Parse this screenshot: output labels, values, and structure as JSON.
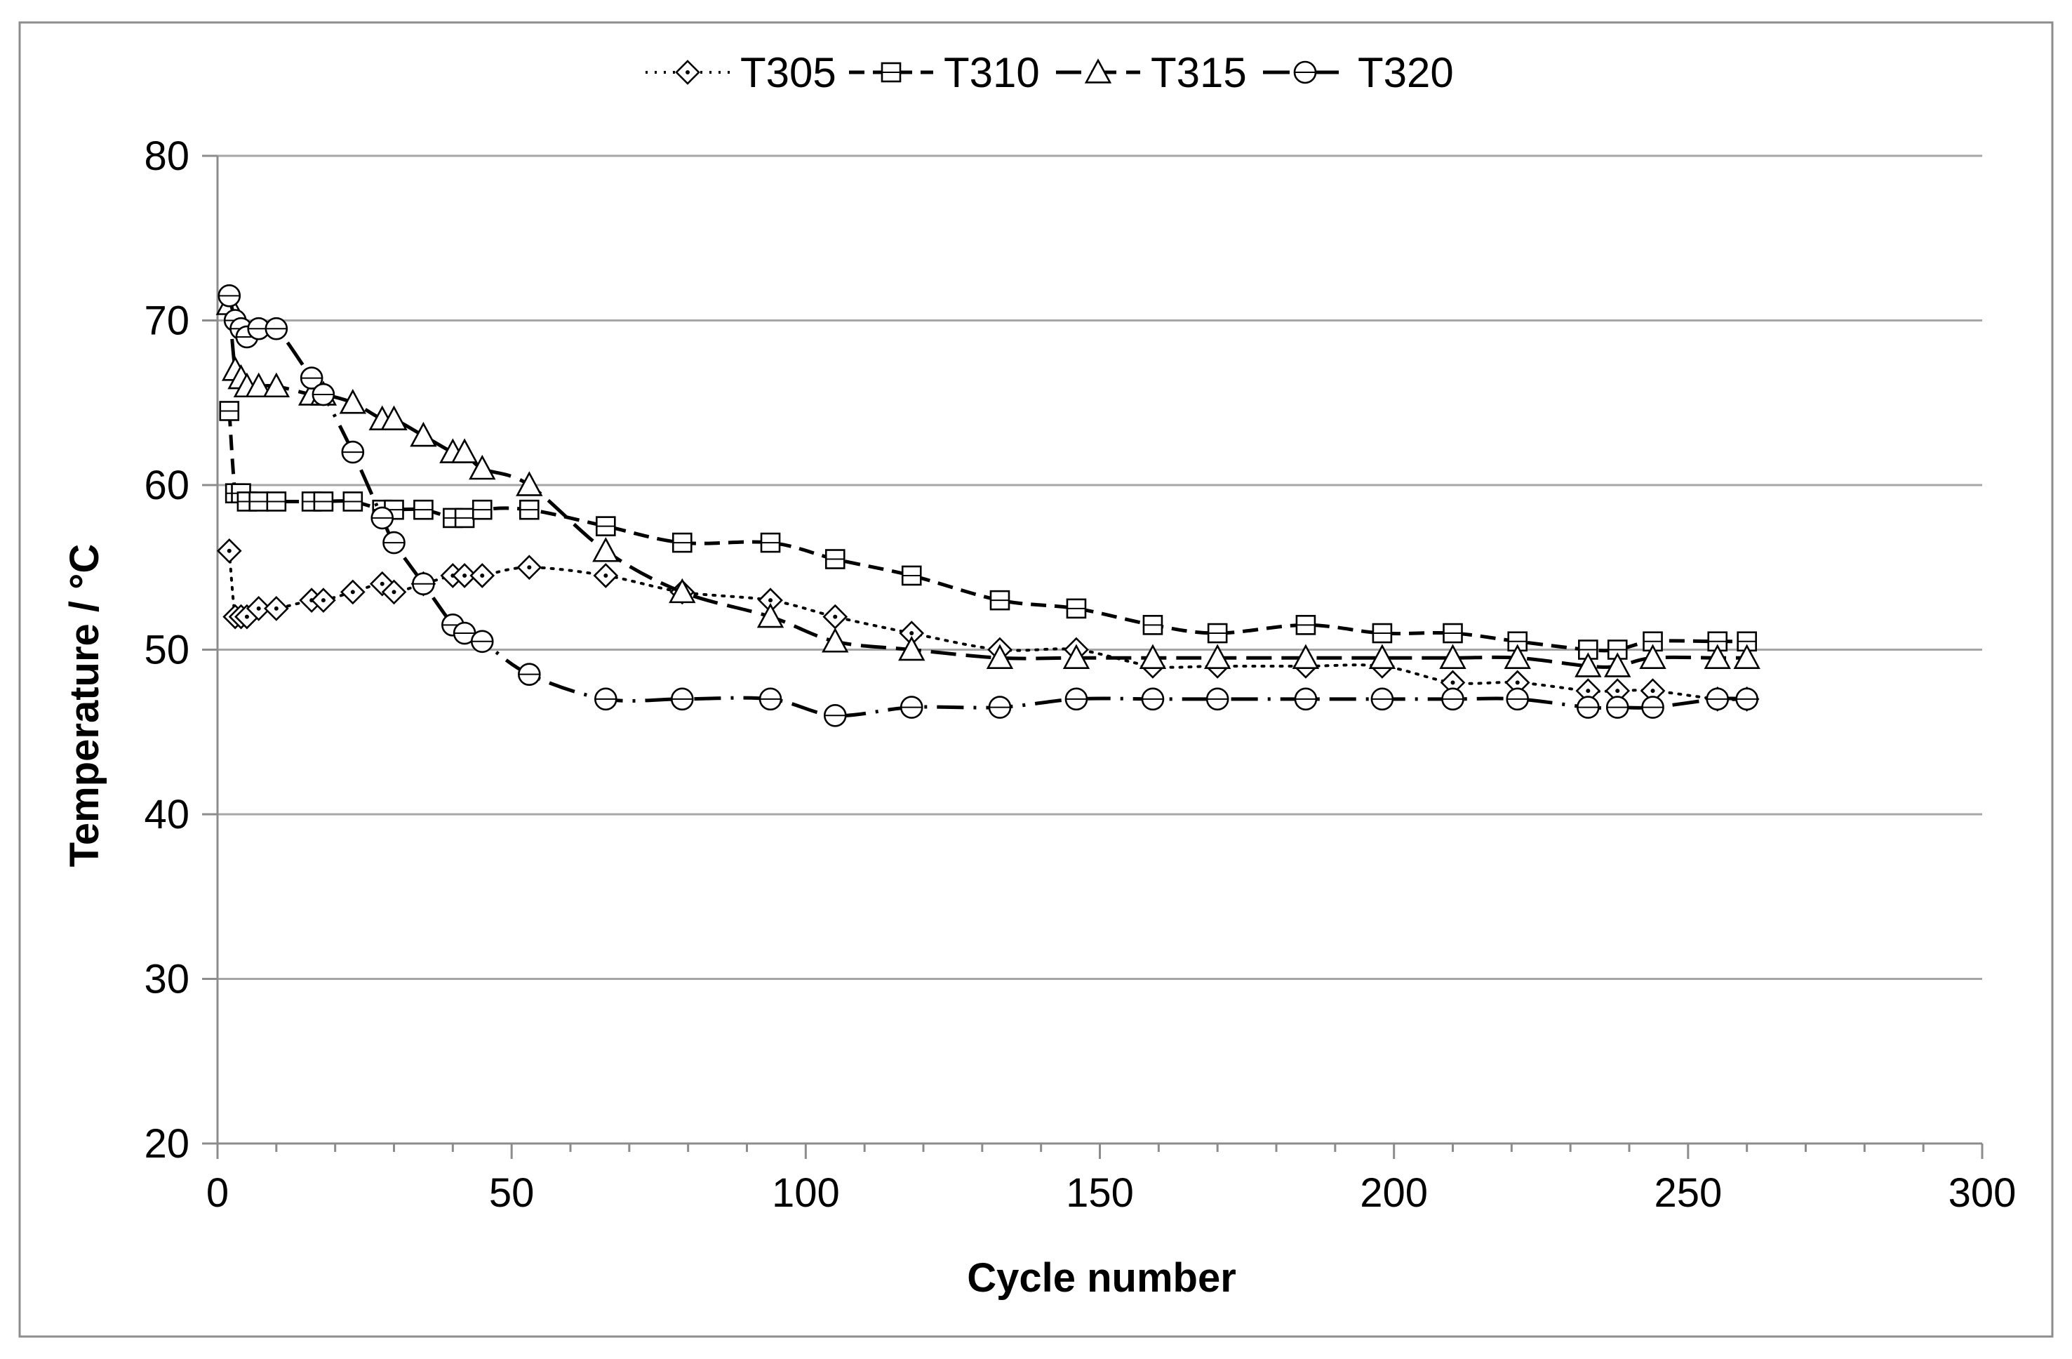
{
  "chart_data": {
    "type": "line",
    "title": "",
    "xlabel": "Cycle  number",
    "ylabel": "Temperature  / °C",
    "xlim": [
      0,
      300
    ],
    "ylim": [
      20,
      80
    ],
    "xticks": [
      0,
      50,
      100,
      150,
      200,
      250,
      300
    ],
    "yticks": [
      20,
      30,
      40,
      50,
      60,
      70,
      80
    ],
    "xtick_labels": [
      "0",
      "50",
      "100",
      "150",
      "200",
      "250",
      "300"
    ],
    "ytick_labels": [
      "20",
      "30",
      "40",
      "50",
      "60",
      "70",
      "80"
    ],
    "grid": "horizontal",
    "legend_position": "top-center",
    "series": [
      {
        "name": "T305",
        "marker": "diamond",
        "line": "dotted",
        "x": [
          2,
          3,
          4,
          5,
          7,
          10,
          16,
          18,
          23,
          28,
          30,
          35,
          40,
          42,
          45,
          53,
          66,
          79,
          94,
          105,
          118,
          133,
          146,
          159,
          170,
          185,
          198,
          210,
          221,
          233,
          238,
          244,
          255,
          260
        ],
        "y": [
          56,
          52,
          52,
          52,
          52.5,
          52.5,
          53,
          53,
          53.5,
          54,
          53.5,
          54,
          54.5,
          54.5,
          54.5,
          55,
          54.5,
          53.5,
          53,
          52,
          51,
          50,
          50,
          49,
          49,
          49,
          49,
          48,
          48,
          47.5,
          47.5,
          47.5,
          47,
          47
        ]
      },
      {
        "name": "T310",
        "marker": "square",
        "line": "dashed",
        "x": [
          2,
          3,
          4,
          5,
          7,
          10,
          16,
          18,
          23,
          28,
          30,
          35,
          40,
          42,
          45,
          53,
          66,
          79,
          94,
          105,
          118,
          133,
          146,
          159,
          170,
          185,
          198,
          210,
          221,
          233,
          238,
          244,
          255,
          260
        ],
        "y": [
          64.5,
          59.5,
          59.5,
          59,
          59,
          59,
          59,
          59,
          59,
          58.5,
          58.5,
          58.5,
          58,
          58,
          58.5,
          58.5,
          57.5,
          56.5,
          56.5,
          55.5,
          54.5,
          53,
          52.5,
          51.5,
          51,
          51.5,
          51,
          51,
          50.5,
          50,
          50,
          50.5,
          50.5,
          50.5
        ]
      },
      {
        "name": "T315",
        "marker": "triangle",
        "line": "long-dash",
        "x": [
          2,
          3,
          4,
          5,
          7,
          10,
          16,
          18,
          23,
          28,
          30,
          35,
          40,
          42,
          45,
          53,
          66,
          79,
          94,
          105,
          118,
          133,
          146,
          159,
          170,
          185,
          198,
          210,
          221,
          233,
          238,
          244,
          255,
          260
        ],
        "y": [
          71,
          67,
          66.5,
          66,
          66,
          66,
          65.5,
          65.5,
          65,
          64,
          64,
          63,
          62,
          62,
          61,
          60,
          56,
          53.5,
          52,
          50.5,
          50,
          49.5,
          49.5,
          49.5,
          49.5,
          49.5,
          49.5,
          49.5,
          49.5,
          49,
          49,
          49.5,
          49.5,
          49.5
        ]
      },
      {
        "name": "T320",
        "marker": "circle",
        "line": "dash-dot",
        "x": [
          2,
          3,
          4,
          5,
          7,
          10,
          16,
          18,
          23,
          28,
          30,
          35,
          40,
          42,
          45,
          53,
          66,
          79,
          94,
          105,
          118,
          133,
          146,
          159,
          170,
          185,
          198,
          210,
          221,
          233,
          238,
          244,
          255,
          260
        ],
        "y": [
          71.5,
          70,
          69.5,
          69,
          69.5,
          69.5,
          66.5,
          65.5,
          62,
          58,
          56.5,
          54,
          51.5,
          51,
          50.5,
          48.5,
          47,
          47,
          47,
          46,
          46.5,
          46.5,
          47,
          47,
          47,
          47,
          47,
          47,
          47,
          46.5,
          46.5,
          46.5,
          47,
          47
        ]
      }
    ]
  }
}
